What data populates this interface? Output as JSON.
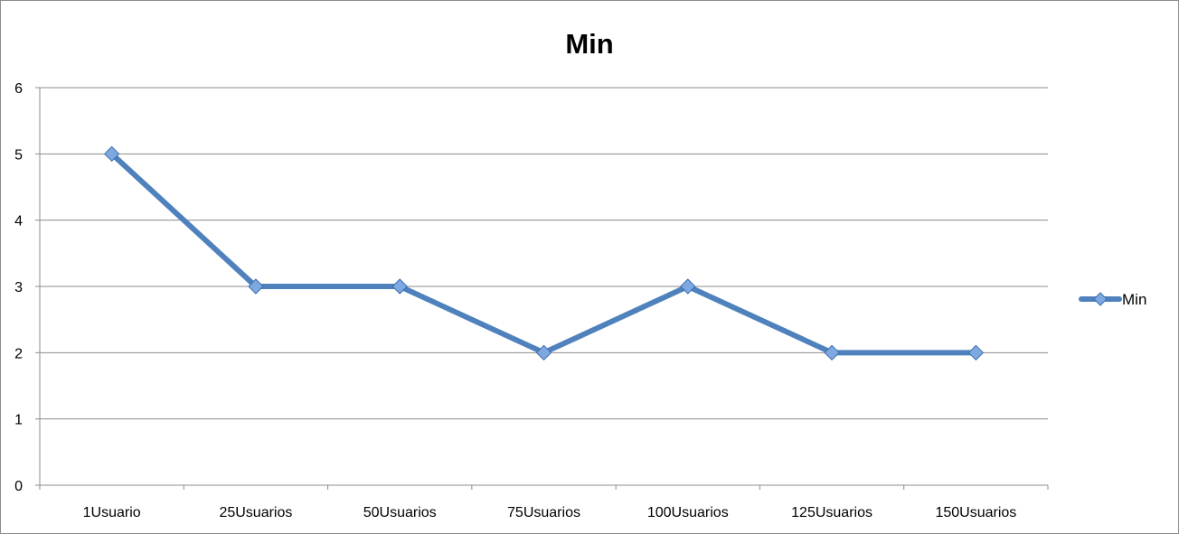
{
  "chart_data": {
    "type": "line",
    "title": "Min",
    "xlabel": "",
    "ylabel": "",
    "categories": [
      "1Usuario",
      "25Usuarios",
      "50Usuarios",
      "75Usuarios",
      "100Usuarios",
      "125Usuarios",
      "150Usuarios"
    ],
    "series": [
      {
        "name": "Min",
        "values": [
          5,
          3,
          3,
          2,
          3,
          2,
          2
        ],
        "color": "#4f81bd",
        "marker": "diamond"
      }
    ],
    "ylim": [
      0,
      6
    ],
    "yticks": [
      "0",
      "1",
      "2",
      "3",
      "4",
      "5",
      "6"
    ],
    "grid": true,
    "legend_position": "right"
  }
}
